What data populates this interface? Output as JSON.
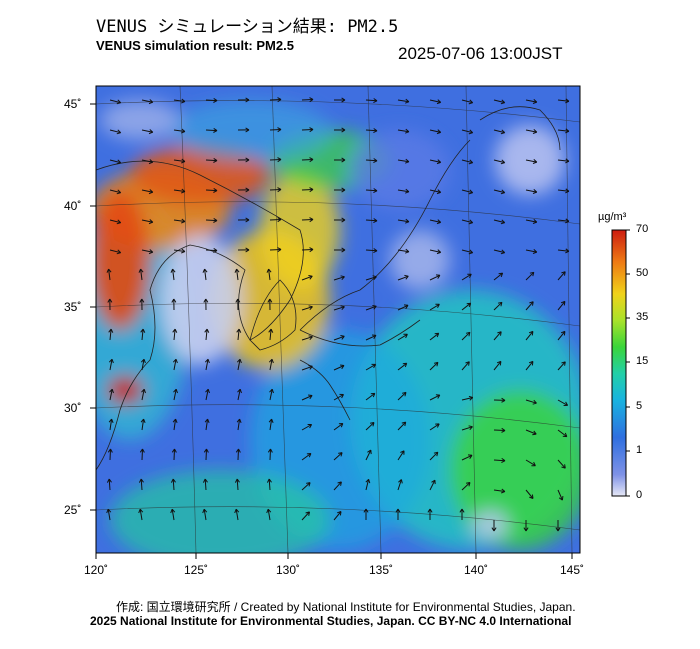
{
  "header": {
    "title_jp": "VENUS シミュレーション結果: PM2.5",
    "title_en": "VENUS simulation result: PM2.5",
    "timestamp": "2025-07-06 13:00JST"
  },
  "map": {
    "lat_labels": [
      "45˚",
      "40˚",
      "35˚",
      "30˚",
      "25˚"
    ],
    "lon_labels": [
      "120˚",
      "125˚",
      "130˚",
      "135˚",
      "140˚",
      "145˚"
    ],
    "lat_range": [
      23,
      46
    ],
    "lon_range": [
      120,
      145.5
    ],
    "field": "PM2.5",
    "colors": {
      "background_low": "#3f6fe0",
      "high": "#e22a10",
      "land_outline": "#222222"
    }
  },
  "colorbar": {
    "unit": "µg/m³",
    "ticks": [
      "70",
      "50",
      "35",
      "15",
      "5",
      "1",
      "0"
    ],
    "colors": [
      "#d8dcf0",
      "#5a78e6",
      "#1f9be0",
      "#19c9c0",
      "#38d73a",
      "#c8e326",
      "#f0c41a",
      "#ee6a14",
      "#d41f10"
    ]
  },
  "footer": {
    "credit": "作成: 国立環境研究所 / Created by National Institute for Environmental Studies, Japan.",
    "license": "2025 National Institute for Environmental Studies, Japan. CC BY-NC 4.0 International"
  }
}
